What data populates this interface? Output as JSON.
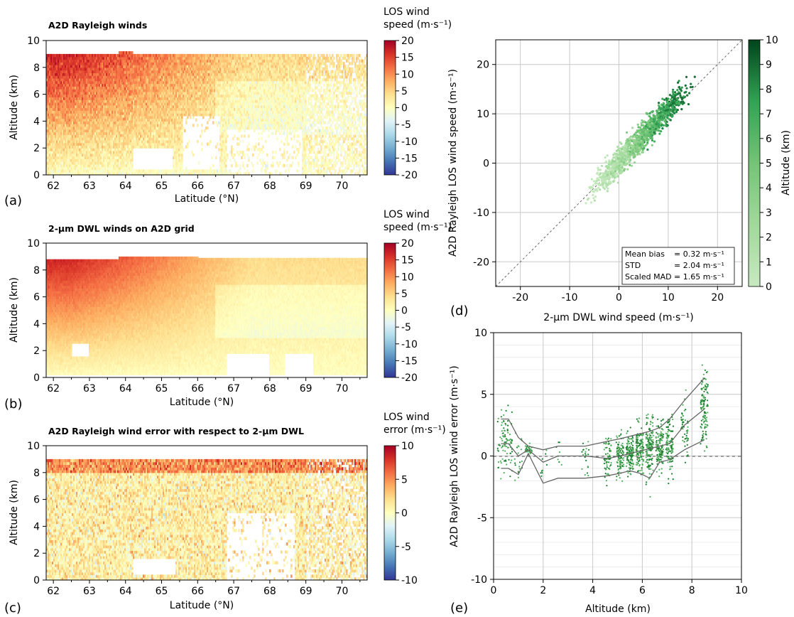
{
  "figure": {
    "panel_labels": [
      "(a)",
      "(b)",
      "(c)",
      "(d)",
      "(e)"
    ]
  },
  "chart_data": [
    {
      "id": "a",
      "type": "heatmap",
      "title": "A2D Rayleigh winds",
      "xlabel": "Latitude (°N)",
      "ylabel": "Altitude (km)",
      "xlim": [
        61.8,
        70.7
      ],
      "ylim": [
        0,
        10
      ],
      "xticks": [
        "62",
        "63",
        "64",
        "65",
        "66",
        "67",
        "68",
        "69",
        "70"
      ],
      "yticks": [
        "0",
        "2",
        "4",
        "6",
        "8",
        "10"
      ],
      "colorbar": {
        "label_line1": "LOS wind",
        "label_line2": "speed (m·s⁻¹)",
        "range": [
          -20,
          20
        ],
        "ticks": [
          "20",
          "15",
          "10",
          "5",
          "0",
          "-5",
          "-10",
          "-15",
          "-20"
        ],
        "colormap": "RdYlBu_r"
      },
      "grid": false
    },
    {
      "id": "b",
      "type": "heatmap",
      "title": "2-µm DWL winds on A2D grid",
      "xlabel": "Latitude (°N)",
      "ylabel": "Altitude (km)",
      "xlim": [
        61.8,
        70.7
      ],
      "ylim": [
        0,
        10
      ],
      "xticks": [
        "62",
        "63",
        "64",
        "65",
        "66",
        "67",
        "68",
        "69",
        "70"
      ],
      "yticks": [
        "0",
        "2",
        "4",
        "6",
        "8",
        "10"
      ],
      "colorbar": {
        "label_line1": "LOS wind",
        "label_line2": "speed (m·s⁻¹)",
        "range": [
          -20,
          20
        ],
        "ticks": [
          "20",
          "15",
          "10",
          "5",
          "0",
          "-5",
          "-10",
          "-15",
          "-20"
        ],
        "colormap": "RdYlBu_r"
      },
      "grid": false
    },
    {
      "id": "c",
      "type": "heatmap",
      "title": "A2D Rayleigh wind error with respect to 2-µm DWL",
      "xlabel": "Latitude (°N)",
      "ylabel": "Altitude (km)",
      "xlim": [
        61.8,
        70.7
      ],
      "ylim": [
        0,
        10
      ],
      "xticks": [
        "62",
        "63",
        "64",
        "65",
        "66",
        "67",
        "68",
        "69",
        "70"
      ],
      "yticks": [
        "0",
        "2",
        "4",
        "6",
        "8",
        "10"
      ],
      "colorbar": {
        "label_line1": "LOS wind",
        "label_line2": "error (m·s⁻¹)",
        "range": [
          -10,
          10
        ],
        "ticks": [
          "10",
          "5",
          "0",
          "-5",
          "-10"
        ],
        "colormap": "RdYlBu_r"
      },
      "grid": false
    },
    {
      "id": "d",
      "type": "scatter",
      "xlabel": "2-µm DWL wind speed (m·s⁻¹)",
      "ylabel": "A2D Rayleigh LOS wind speed (m·s⁻¹)",
      "xlim": [
        -25,
        25
      ],
      "ylim": [
        -25,
        25
      ],
      "xticks": [
        "-20",
        "-10",
        "0",
        "10",
        "20"
      ],
      "yticks": [
        "20",
        "10",
        "0",
        "-10",
        "-20"
      ],
      "reference_line": "1:1 dashed",
      "colorbar": {
        "label": "Altitude (km)",
        "range": [
          0,
          10
        ],
        "ticks": [
          "10",
          "9",
          "8",
          "7",
          "6",
          "5",
          "4",
          "3",
          "2",
          "1",
          "0"
        ],
        "colormap": "Greens"
      },
      "stats": [
        {
          "label": "Mean bias",
          "value": "= 0.32 m·s⁻¹"
        },
        {
          "label": "STD",
          "value": "= 2.04 m·s⁻¹"
        },
        {
          "label": "Scaled MAD",
          "value": "= 1.65 m·s⁻¹"
        }
      ],
      "stats_placement": "bottom-right",
      "approx_relation": "y ≈ 1.05·x + 0.3 with std ≈ 2",
      "grid": true
    },
    {
      "id": "e",
      "type": "scatter",
      "xlabel": "Altitude (km)",
      "ylabel": "A2D Rayleigh LOS wind error (m·s⁻¹)",
      "xlim": [
        0,
        10
      ],
      "ylim": [
        -10,
        10
      ],
      "xticks": [
        "0",
        "2",
        "4",
        "6",
        "8",
        "10"
      ],
      "yticks": [
        "10",
        "5",
        "0",
        "-5",
        "-10"
      ],
      "altitude_bins": [
        0.3,
        0.6,
        1.0,
        1.4,
        2.0,
        2.6,
        3.7,
        4.6,
        5.1,
        5.5,
        5.9,
        6.3,
        6.7,
        7.1,
        7.7,
        8.5
      ],
      "mean_line": [
        1.0,
        1.0,
        0.0,
        0.5,
        -0.5,
        0.0,
        0.0,
        -0.2,
        0.0,
        0.2,
        0.4,
        0.6,
        0.8,
        1.0,
        2.5,
        3.8
      ],
      "upper_line": [
        3.0,
        3.0,
        1.5,
        0.8,
        0.5,
        0.8,
        0.8,
        1.2,
        1.4,
        1.6,
        1.8,
        2.0,
        2.3,
        3.0,
        4.5,
        6.3
      ],
      "lower_line": [
        -1.0,
        -1.0,
        -1.5,
        0.2,
        -2.2,
        -1.8,
        -1.8,
        -1.6,
        -1.4,
        -1.2,
        -1.4,
        -1.8,
        -0.5,
        -0.3,
        0.5,
        1.3
      ],
      "zero_line": "dashed at 0",
      "grid": true
    }
  ]
}
